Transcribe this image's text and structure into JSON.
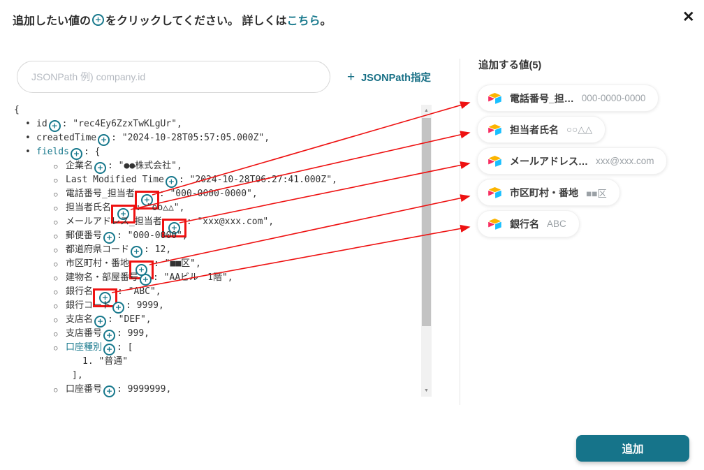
{
  "dialog": {
    "title_pre": "追加したい値の",
    "title_post": "をクリックしてください。 詳しくは",
    "title_link": "こちら",
    "title_end": "。",
    "close_icon": "✕"
  },
  "search": {
    "placeholder": "JSONPath 例) company.id"
  },
  "jsonpath_button": {
    "plus": "+",
    "label": "JSONPath指定"
  },
  "tree": {
    "lines": [
      {
        "ind": 0,
        "b": "",
        "seg": [
          [
            "t",
            "{"
          ]
        ]
      },
      {
        "ind": 1,
        "b": "d",
        "seg": [
          [
            "k",
            "id"
          ],
          [
            "i"
          ],
          [
            "t",
            ": \"rec4Ey6ZzxTwKLgUr\","
          ]
        ]
      },
      {
        "ind": 1,
        "b": "d",
        "seg": [
          [
            "k",
            "createdTime"
          ],
          [
            "i"
          ],
          [
            "t",
            ": \"2024-10-28T05:57:05.000Z\","
          ]
        ]
      },
      {
        "ind": 1,
        "b": "d",
        "seg": [
          [
            "kl",
            "fields"
          ],
          [
            "i"
          ],
          [
            "t",
            ": {"
          ]
        ]
      },
      {
        "ind": 2,
        "b": "c",
        "seg": [
          [
            "k",
            "企業名"
          ],
          [
            "i"
          ],
          [
            "t",
            ": \"●●株式会社\","
          ]
        ]
      },
      {
        "ind": 2,
        "b": "c",
        "seg": [
          [
            "k",
            "Last Modified Time"
          ],
          [
            "i"
          ],
          [
            "t",
            ": \"2024-10-28T06:27:41.000Z\","
          ]
        ]
      },
      {
        "ind": 2,
        "b": "c",
        "seg": [
          [
            "k",
            "電話番号_担当者"
          ],
          [
            "ib"
          ],
          [
            "t",
            ": \"000-0000-0000\","
          ]
        ]
      },
      {
        "ind": 2,
        "b": "c",
        "seg": [
          [
            "k",
            "担当者氏名"
          ],
          [
            "ib"
          ],
          [
            "t",
            ": \"oo△△\","
          ]
        ]
      },
      {
        "ind": 2,
        "b": "c",
        "seg": [
          [
            "k",
            "メールアドレス_担当者"
          ],
          [
            "ib"
          ],
          [
            "t",
            ": \"xxx@xxx.com\","
          ]
        ]
      },
      {
        "ind": 2,
        "b": "c",
        "seg": [
          [
            "k",
            "郵便番号"
          ],
          [
            "i"
          ],
          [
            "t",
            ": \"000-0000\","
          ]
        ]
      },
      {
        "ind": 2,
        "b": "c",
        "seg": [
          [
            "k",
            "都道府県コード"
          ],
          [
            "i"
          ],
          [
            "t",
            ": 12,"
          ]
        ]
      },
      {
        "ind": 2,
        "b": "c",
        "seg": [
          [
            "k",
            "市区町村・番地"
          ],
          [
            "ib"
          ],
          [
            "t",
            ": \"■■区\","
          ]
        ]
      },
      {
        "ind": 2,
        "b": "c",
        "seg": [
          [
            "k",
            "建物名・部屋番号"
          ],
          [
            "i"
          ],
          [
            "t",
            ": \"AAビル　1階\","
          ]
        ]
      },
      {
        "ind": 2,
        "b": "c",
        "seg": [
          [
            "k",
            "銀行名"
          ],
          [
            "ib"
          ],
          [
            "t",
            ": \"ABC\","
          ]
        ]
      },
      {
        "ind": 2,
        "b": "c",
        "seg": [
          [
            "k",
            "銀行コード"
          ],
          [
            "i"
          ],
          [
            "t",
            ": 9999,"
          ]
        ]
      },
      {
        "ind": 2,
        "b": "c",
        "seg": [
          [
            "k",
            "支店名"
          ],
          [
            "i"
          ],
          [
            "t",
            ": \"DEF\","
          ]
        ]
      },
      {
        "ind": 2,
        "b": "c",
        "seg": [
          [
            "k",
            "支店番号"
          ],
          [
            "i"
          ],
          [
            "t",
            ": 999,"
          ]
        ]
      },
      {
        "ind": 2,
        "b": "c",
        "seg": [
          [
            "kl",
            "口座種別"
          ],
          [
            "i"
          ],
          [
            "t",
            ": ["
          ]
        ]
      },
      {
        "ind": 3,
        "b": "",
        "seg": [
          [
            "t",
            "1. \"普通\""
          ]
        ]
      },
      {
        "ind": 4,
        "b": "",
        "seg": [
          [
            "t",
            "],"
          ]
        ]
      },
      {
        "ind": 2,
        "b": "c",
        "seg": [
          [
            "k",
            "口座番号"
          ],
          [
            "i"
          ],
          [
            "t",
            ": 9999999,"
          ]
        ]
      }
    ]
  },
  "panel": {
    "header": "追加する値(5)",
    "chips": [
      {
        "label": "電話番号_担…",
        "value": "000-0000-0000"
      },
      {
        "label": "担当者氏名",
        "value": "○○△△"
      },
      {
        "label": "メールアドレス…",
        "value": "xxx@xxx.com"
      },
      {
        "label": "市区町村・番地",
        "value": "■■区"
      },
      {
        "label": "銀行名",
        "value": "ABC"
      }
    ]
  },
  "footer": {
    "add_label": "追加"
  },
  "colors": {
    "accent": "#17788c",
    "red": "#ee1111"
  }
}
